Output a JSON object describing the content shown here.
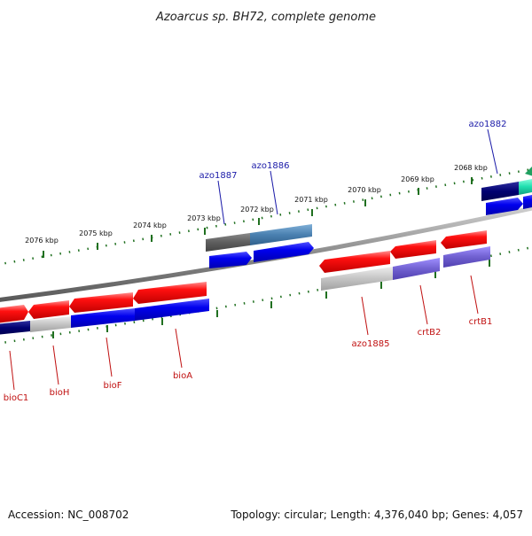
{
  "title": "Azoarcus sp. BH72, complete genome",
  "accession": "Accession: NC_008702",
  "topology": "Topology: circular; Length: 4,376,040 bp; Genes: 4,057",
  "ticks": [
    "2076 kbp",
    "2075 kbp",
    "2074 kbp",
    "2073 kbp",
    "2072 kbp",
    "2071 kbp",
    "2070 kbp",
    "2069 kbp",
    "2068 kbp"
  ],
  "labels_top": [
    "azo1887",
    "azo1886",
    "azo1882"
  ],
  "labels_bottom": [
    "bioC1",
    "bioH",
    "bioF",
    "bioA",
    "azo1885",
    "crtB2",
    "crtB1"
  ],
  "colors": {
    "cds_red": "#e80000",
    "gene_blue": "#0000dd",
    "feature_gray": "#c0c0c0",
    "dark_gray": "#606060",
    "steel_blue": "#4a80b0",
    "purple": "#7060d0",
    "navy": "#000070",
    "teal": "#20e0b0",
    "tick_green": "#207020",
    "backbone": "#888888",
    "label_blue": "#1a1aa8",
    "label_red": "#c01010"
  }
}
